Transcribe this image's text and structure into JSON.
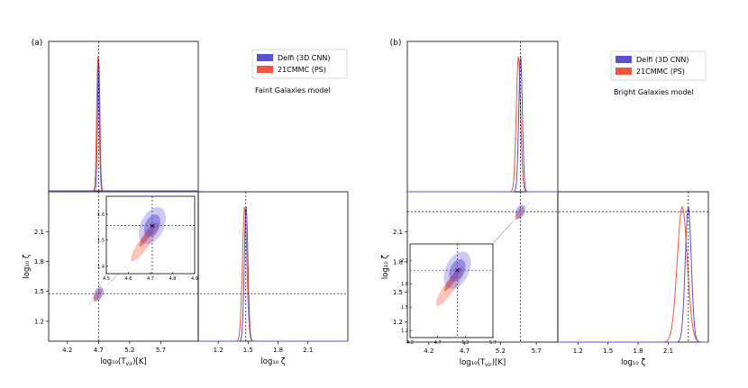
{
  "colors": {
    "delfi": "#5a4fd6",
    "mcmc": "#f2553c",
    "guide": "#000000",
    "inset_link": "#bdbdbd"
  },
  "legend_entries": [
    "Delfi (3D CNN)",
    "21CMMC (PS)"
  ],
  "chart_data": [
    {
      "panel_label": "(a)",
      "model_label": "Faint Galaxies model",
      "type": "corner",
      "params": [
        "log10(Tvir)[K]",
        "log10 ζ"
      ],
      "xlabel_bottom_left": "log₁₀(T",
      "xlabel_bottom_left_sub": "vir",
      "xlabel_bottom_left_tail": ")[K]",
      "xlabel_bottom_right": "log₁₀ ζ",
      "ylabel_left": "log₁₀ ζ",
      "tvir_ticks": [
        "4.2",
        "4.7",
        "5.2",
        "5.7"
      ],
      "zeta_ticks": [
        "1.2",
        "1.5",
        "1.8",
        "2.1"
      ],
      "tvir_range": [
        3.9,
        6.3
      ],
      "zeta_range": [
        1.0,
        2.5
      ],
      "truth": {
        "tvir": 4.7,
        "zeta": 1.477
      },
      "delfi": {
        "tvir_mean": 4.703,
        "tvir_sigma": 0.018,
        "zeta_mean": 1.48,
        "zeta_sigma": 0.018
      },
      "mcmc": {
        "tvir_mean": 4.69,
        "tvir_sigma": 0.02,
        "zeta_mean": 1.465,
        "zeta_sigma": 0.022
      },
      "inset": {
        "xticks": [
          "4.5",
          "4.6",
          "4.7",
          "4.8",
          "4.9"
        ],
        "yticks": [
          "1.4",
          "1.5",
          "1.6"
        ],
        "xrange": [
          4.5,
          4.9
        ],
        "yrange": [
          1.35,
          1.6
        ]
      }
    },
    {
      "panel_label": "(b)",
      "model_label": "Bright Galaxies model",
      "type": "corner",
      "params": [
        "log10(Tvir)[K]",
        "log10 ζ"
      ],
      "xlabel_bottom_left": "log₁₀(T",
      "xlabel_bottom_left_sub": "vir",
      "xlabel_bottom_left_tail": ")[K]",
      "xlabel_bottom_right": "log₁₀ ζ",
      "ylabel_left": "log₁₀ ζ",
      "tvir_ticks": [
        "4.2",
        "4.7",
        "5.2",
        "5.7"
      ],
      "zeta_ticks": [
        "1.2",
        "1.5",
        "1.8",
        "2.1"
      ],
      "tvir_range": [
        3.9,
        6.0
      ],
      "zeta_range": [
        1.0,
        2.5
      ],
      "truth": {
        "tvir": 5.477,
        "zeta": 2.301
      },
      "delfi": {
        "tvir_mean": 5.48,
        "tvir_sigma": 0.025,
        "zeta_mean": 2.3,
        "zeta_sigma": 0.03
      },
      "mcmc": {
        "tvir_mean": 5.45,
        "tvir_sigma": 0.03,
        "zeta_mean": 2.24,
        "zeta_sigma": 0.05
      },
      "inset": {
        "xticks": [
          "4.2",
          "4.7",
          "5.2",
          "5.7"
        ],
        "yticks": [
          "1.2",
          "1.5",
          "1.8",
          "2.1"
        ],
        "xrange": [
          3.9,
          6.0
        ],
        "yrange": [
          1.0,
          2.5
        ]
      }
    }
  ]
}
